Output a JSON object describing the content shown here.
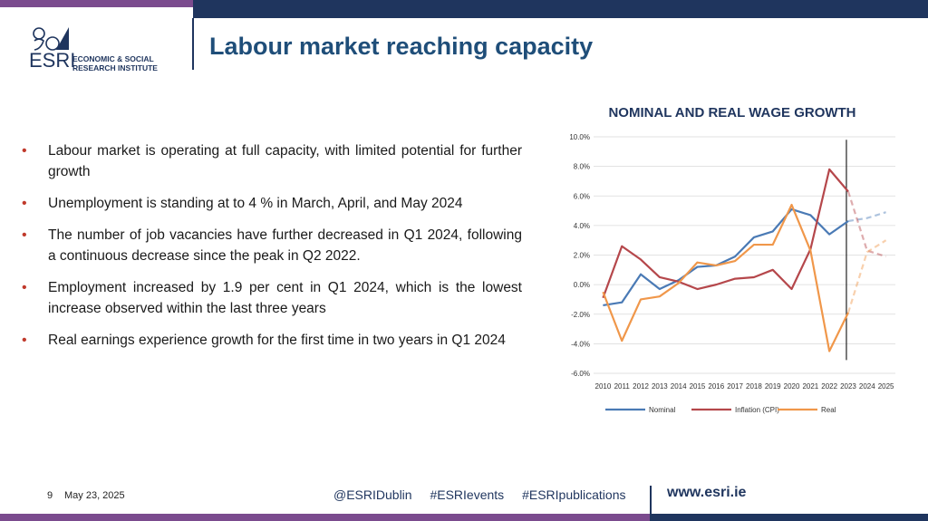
{
  "header": {
    "title": "Labour market reaching capacity",
    "logo": {
      "wordmark": "ESRI",
      "line1": "ECONOMIC & SOCIAL",
      "line2": "RESEARCH INSTITUTE"
    }
  },
  "bullets": [
    "Labour market is operating at full capacity, with limited potential for further growth",
    "Unemployment is standing at to 4 % in March, April, and May 2024",
    "The number of job vacancies have further decreased in Q1 2024, following a continuous decrease since the peak in Q2 2022.",
    "Employment increased by 1.9 per cent in Q1 2024, which is the lowest increase observed within the last three years",
    "Real earnings experience growth for the first time in two years in Q1 2024"
  ],
  "footer": {
    "page": "9",
    "date": "May 23, 2025",
    "tags": [
      "@ESRIDublin",
      "#ESRIevents",
      "#ESRIpublications"
    ],
    "website": "www.esri.ie"
  },
  "colors": {
    "title": "#1f4e79",
    "navy": "#1f355e",
    "purple": "#7b4b8e",
    "bullet": "#c0392b"
  },
  "chart_data": {
    "type": "line",
    "title": "NOMINAL AND REAL WAGE GROWTH",
    "x": [
      "2010",
      "2011",
      "2012",
      "2013",
      "2014",
      "2015",
      "2016",
      "2017",
      "2018",
      "2019",
      "2020",
      "2021",
      "2022",
      "2023",
      "2024",
      "2025"
    ],
    "ylim": [
      -6.0,
      10.0
    ],
    "yticks": [
      "-6.0%",
      "-4.0%",
      "-2.0%",
      "0.0%",
      "2.0%",
      "4.0%",
      "6.0%",
      "8.0%",
      "10.0%"
    ],
    "ytick_values": [
      -6,
      -4,
      -2,
      0,
      2,
      4,
      6,
      8,
      10
    ],
    "grid": true,
    "legend_position": "bottom",
    "forecast_marker_year": 2023,
    "series": [
      {
        "name": "Nominal",
        "color": "#4a7ab5",
        "values": [
          -1.4,
          -1.2,
          0.7,
          -0.3,
          0.3,
          1.2,
          1.3,
          1.9,
          3.2,
          3.6,
          5.1,
          4.7,
          3.4,
          4.3,
          4.5,
          4.9
        ],
        "forecast_from_index": 13
      },
      {
        "name": "Inflation (CPI)",
        "color": "#b5474b",
        "values": [
          -0.9,
          2.6,
          1.7,
          0.5,
          0.2,
          -0.3,
          0.0,
          0.4,
          0.5,
          1.0,
          -0.3,
          2.4,
          7.8,
          6.3,
          2.3,
          1.9
        ],
        "forecast_from_index": 13
      },
      {
        "name": "Real",
        "color": "#f0974a",
        "values": [
          -0.5,
          -3.8,
          -1.0,
          -0.8,
          0.1,
          1.5,
          1.3,
          1.6,
          2.7,
          2.7,
          5.4,
          2.3,
          -4.5,
          -1.9,
          2.2,
          3.0
        ],
        "forecast_from_index": 13
      }
    ]
  }
}
